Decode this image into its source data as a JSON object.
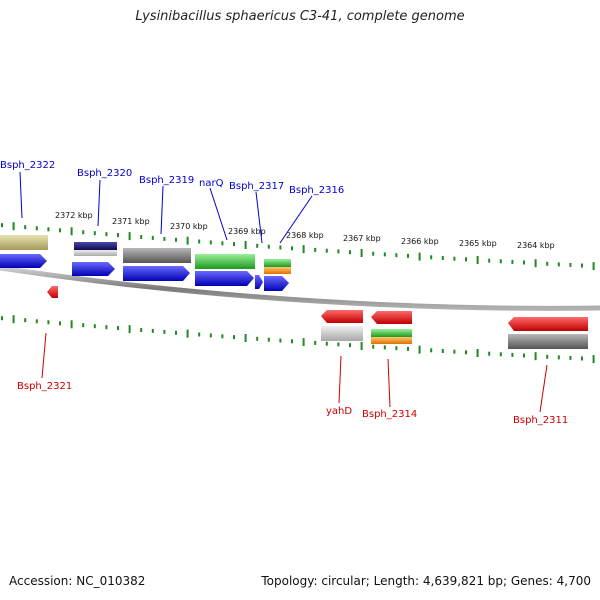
{
  "title": "Lysinibacillus sphaericus C3-41, complete genome",
  "footer": {
    "accession": "Accession: NC_010382",
    "summary": "Topology: circular; Length: 4,639,821 bp; Genes: 4,700"
  },
  "colors": {
    "forward_label": "#0000cc",
    "reverse_label": "#cc0000",
    "tick": "#228822",
    "backbone": "#8a8a8a"
  },
  "scale_labels": [
    "2372 kbp",
    "2371 kbp",
    "2370 kbp",
    "2369 kbp",
    "2368 kbp",
    "2367 kbp",
    "2366 kbp",
    "2365 kbp",
    "2364 kbp"
  ],
  "forward_labels": [
    "Bsph_2322",
    "Bsph_2320",
    "Bsph_2319",
    "narQ",
    "Bsph_2317",
    "Bsph_2316"
  ],
  "reverse_labels": [
    "Bsph_2321",
    "yahD",
    "Bsph_2314",
    "Bsph_2311"
  ],
  "legend_colors": [
    "khaki",
    "navy",
    "gray",
    "green",
    "orange",
    "blue",
    "red",
    "silver"
  ]
}
